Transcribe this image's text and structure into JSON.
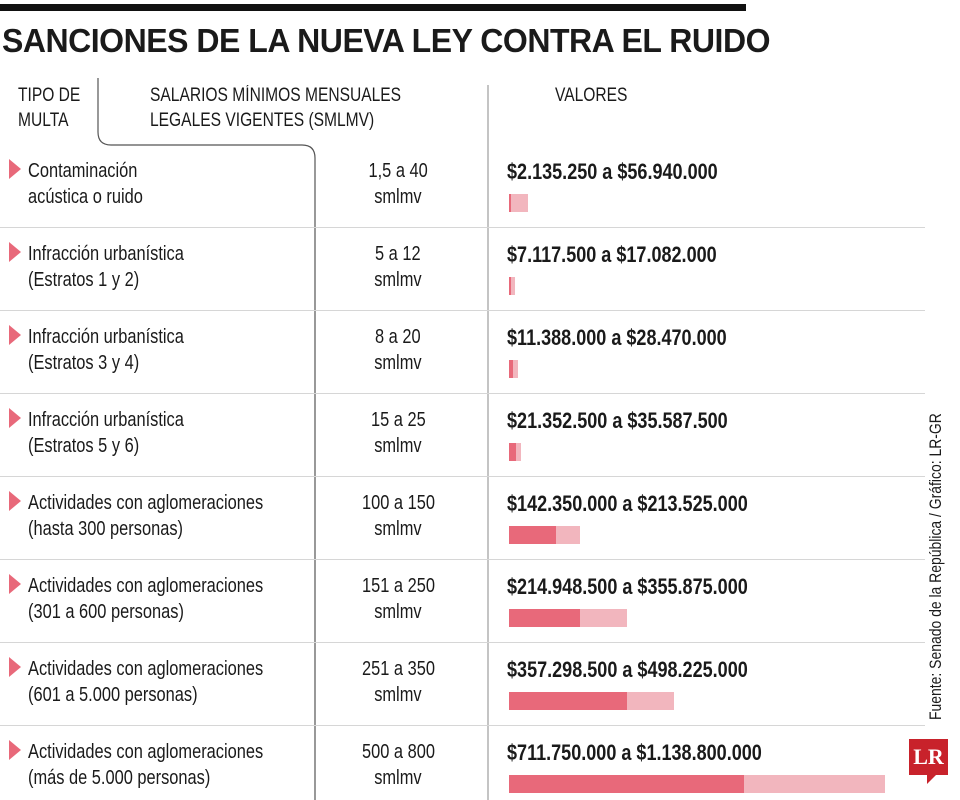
{
  "title": "SANCIONES DE LA NUEVA LEY CONTRA EL RUIDO",
  "headers": {
    "tipo": [
      "TIPO DE",
      "MULTA"
    ],
    "smlmv": [
      "SALARIOS MÍNIMOS MENSUALES",
      "LEGALES VIGENTES (SMLMV)"
    ],
    "valores": "VALORES"
  },
  "source": "Fuente: Senado de la República / Gráfico: LR-GR",
  "logo": "LR",
  "colors": {
    "min": "#e8697a",
    "max": "#f2b6be"
  },
  "chart_data": {
    "type": "table",
    "title": "SANCIONES DE LA NUEVA LEY CONTRA EL RUIDO",
    "columns": [
      "TIPO DE MULTA",
      "SALARIOS MÍNIMOS MENSUALES LEGALES VIGENTES (SMLMV)",
      "VALORES"
    ],
    "bar_max": 1138800000,
    "rows": [
      {
        "tipo": [
          "Contaminación",
          "acústica o ruido"
        ],
        "smlmv": [
          "1,5 a 40",
          "smlmv"
        ],
        "valores": "$2.135.250 a $56.940.000",
        "min": 2135250,
        "max": 56940000
      },
      {
        "tipo": [
          "Infracción urbanística",
          "(Estratos 1 y 2)"
        ],
        "smlmv": [
          "5 a 12",
          "smlmv"
        ],
        "valores": "$7.117.500 a $17.082.000",
        "min": 7117500,
        "max": 17082000
      },
      {
        "tipo": [
          "Infracción urbanística",
          "(Estratos 3 y 4)"
        ],
        "smlmv": [
          "8 a 20",
          "smlmv"
        ],
        "valores": "$11.388.000 a $28.470.000",
        "min": 11388000,
        "max": 28470000
      },
      {
        "tipo": [
          "Infracción urbanística",
          "(Estratos 5 y 6)"
        ],
        "smlmv": [
          "15 a 25",
          "smlmv"
        ],
        "valores": "$21.352.500 a $35.587.500",
        "min": 21352500,
        "max": 35587500
      },
      {
        "tipo": [
          "Actividades con aglomeraciones",
          "(hasta 300 personas)"
        ],
        "smlmv": [
          "100 a 150",
          "smlmv"
        ],
        "valores": "$142.350.000 a $213.525.000",
        "min": 142350000,
        "max": 213525000
      },
      {
        "tipo": [
          "Actividades con aglomeraciones",
          "(301 a 600 personas)"
        ],
        "smlmv": [
          "151 a 250",
          "smlmv"
        ],
        "valores": "$214.948.500 a $355.875.000",
        "min": 214948500,
        "max": 355875000
      },
      {
        "tipo": [
          "Actividades con aglomeraciones",
          "(601 a 5.000 personas)"
        ],
        "smlmv": [
          "251 a 350",
          "smlmv"
        ],
        "valores": "$357.298.500 a $498.225.000",
        "min": 357298500,
        "max": 498225000
      },
      {
        "tipo": [
          "Actividades con aglomeraciones",
          "(más de 5.000 personas)"
        ],
        "smlmv": [
          "500 a 800",
          "smlmv"
        ],
        "valores": "$711.750.000 a $1.138.800.000",
        "min": 711750000,
        "max": 1138800000
      }
    ]
  }
}
